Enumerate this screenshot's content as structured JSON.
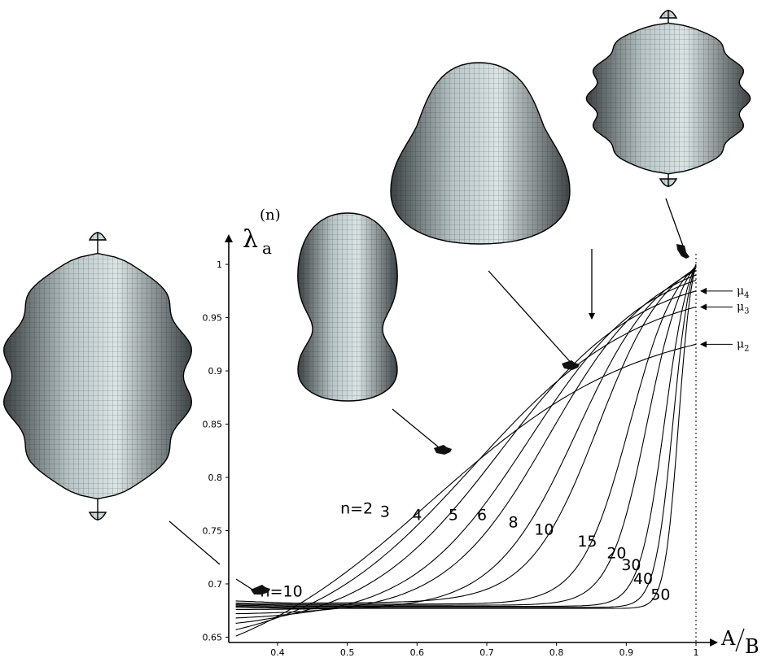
{
  "chart_data": {
    "type": "line",
    "ylabel": {
      "main": "λ",
      "sub": "a",
      "sup": "(n)"
    },
    "xlabel": {
      "num": "A",
      "den": "B"
    },
    "xlim": [
      0.33,
      1.0
    ],
    "ylim": [
      0.645,
      1.01
    ],
    "x_ticks": [
      "0.4",
      "0.5",
      "0.6",
      "0.7",
      "0.8",
      "0.9",
      "1"
    ],
    "y_ticks": [
      "0.65",
      "0.7",
      "0.75",
      "0.8",
      "0.85",
      "0.9",
      "0.95",
      "1"
    ],
    "reference_line_x": 1.0,
    "series": [
      {
        "name": "n=2",
        "label": "n=2",
        "left_value": 0.651,
        "plateau": 0.651,
        "end_value": 0.925,
        "mid": 0.62,
        "width": 0.15,
        "label_pos": [
          0.49,
          0.766
        ]
      },
      {
        "name": "n=3",
        "label": "3",
        "left_value": 0.657,
        "plateau": 0.657,
        "end_value": 0.96,
        "mid": 0.68,
        "width": 0.12,
        "label_pos": [
          0.547,
          0.763
        ]
      },
      {
        "name": "n=4",
        "label": "4",
        "left_value": 0.663,
        "plateau": 0.663,
        "end_value": 0.975,
        "mid": 0.72,
        "width": 0.1,
        "label_pos": [
          0.593,
          0.76
        ]
      },
      {
        "name": "n=5",
        "label": "5",
        "left_value": 0.668,
        "plateau": 0.668,
        "end_value": 0.985,
        "mid": 0.76,
        "width": 0.085,
        "label_pos": [
          0.645,
          0.76
        ]
      },
      {
        "name": "n=6",
        "label": "6",
        "left_value": 0.672,
        "plateau": 0.672,
        "end_value": 0.99,
        "mid": 0.79,
        "width": 0.075,
        "label_pos": [
          0.686,
          0.76
        ]
      },
      {
        "name": "n=8",
        "label": "8",
        "left_value": 0.676,
        "plateau": 0.676,
        "end_value": 0.994,
        "mid": 0.83,
        "width": 0.06,
        "label_pos": [
          0.731,
          0.753
        ]
      },
      {
        "name": "n=10",
        "label": "10",
        "left_value": 0.684,
        "plateau": 0.682,
        "end_value": 0.996,
        "mid": 0.86,
        "width": 0.05,
        "label_pos": [
          0.768,
          0.746
        ]
      },
      {
        "name": "n=15",
        "label": "15",
        "left_value": 0.682,
        "plateau": 0.681,
        "end_value": 0.998,
        "mid": 0.905,
        "width": 0.035,
        "label_pos": [
          0.83,
          0.735
        ]
      },
      {
        "name": "n=20",
        "label": "20",
        "left_value": 0.681,
        "plateau": 0.68,
        "end_value": 0.999,
        "mid": 0.93,
        "width": 0.027,
        "label_pos": [
          0.872,
          0.724
        ]
      },
      {
        "name": "n=30",
        "label": "30",
        "left_value": 0.68,
        "plateau": 0.679,
        "end_value": 1.0,
        "mid": 0.955,
        "width": 0.018,
        "label_pos": [
          0.893,
          0.713
        ]
      },
      {
        "name": "n=40",
        "label": "40",
        "left_value": 0.679,
        "plateau": 0.678,
        "end_value": 1.0,
        "mid": 0.967,
        "width": 0.013,
        "label_pos": [
          0.91,
          0.7
        ]
      },
      {
        "name": "n=50",
        "label": "50",
        "left_value": 0.678,
        "plateau": 0.677,
        "end_value": 1.0,
        "mid": 0.975,
        "width": 0.01,
        "label_pos": [
          0.935,
          0.685
        ]
      }
    ],
    "annotations": [
      {
        "label": "μ",
        "sub": "4",
        "value": 0.975
      },
      {
        "label": "μ",
        "sub": "3",
        "value": 0.96
      },
      {
        "label": "μ",
        "sub": "2",
        "value": 0.925
      }
    ],
    "left_label": {
      "text": "n=10",
      "x": 0.375,
      "y": 0.688
    }
  },
  "shapes": [
    {
      "name": "spiky-shape-left-icon",
      "kind": "spiky",
      "ribs": 5
    },
    {
      "name": "peanut-shape-icon",
      "kind": "peanut"
    },
    {
      "name": "bell-shape-icon",
      "kind": "bell"
    },
    {
      "name": "spiky-shape-top-right-icon",
      "kind": "spiky",
      "ribs": 6
    }
  ]
}
